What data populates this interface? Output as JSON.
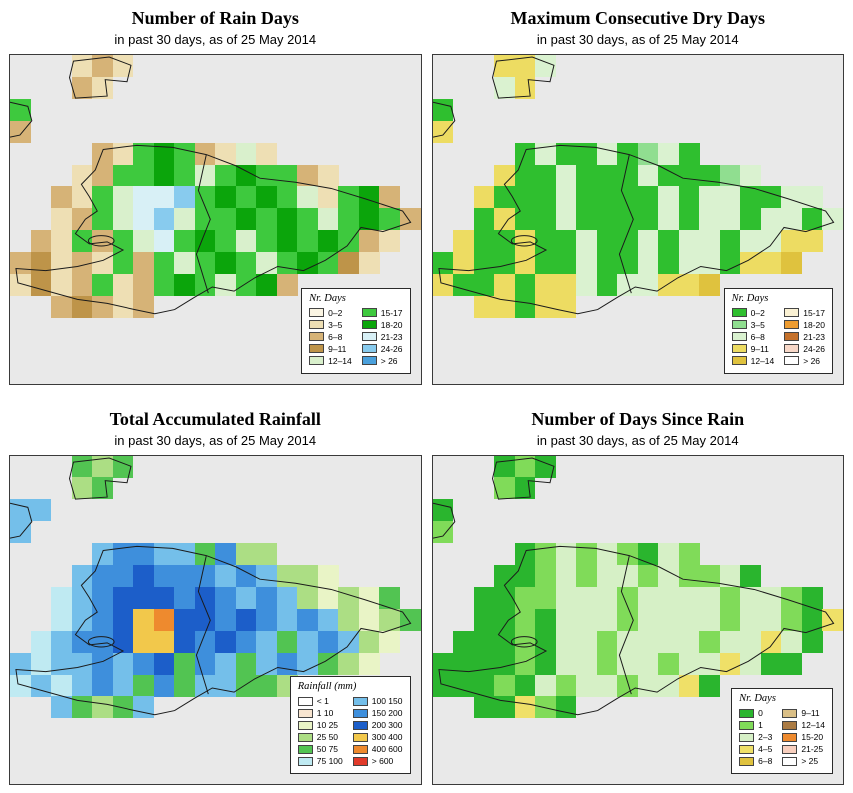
{
  "panels": [
    {
      "id": "rain-days",
      "title": "Number of Rain Days",
      "subtitle": "in past 30 days, as of  25 May 2014",
      "legend": {
        "title": "Nr. Days",
        "columns": [
          [
            {
              "label": "0–2",
              "color": "#FBF5E3"
            },
            {
              "label": "3–5",
              "color": "#EEDFB4"
            },
            {
              "label": "6–8",
              "color": "#D6B377"
            },
            {
              "label": "9–11",
              "color": "#BE9449"
            },
            {
              "label": "12–14",
              "color": "#D9F0CC"
            }
          ],
          [
            {
              "label": "15-17",
              "color": "#3EC93E"
            },
            {
              "label": "18-20",
              "color": "#0BA50B"
            },
            {
              "label": "21-23",
              "color": "#D8F0F6"
            },
            {
              "label": "24-26",
              "color": "#88CBEE"
            },
            {
              "label": "> 26",
              "color": "#4AA0DC"
            }
          ]
        ]
      },
      "map": {
        "background": "#e9e9e9",
        "palette": {
          "b": "#EEDFB4",
          "c": "#D6B377",
          "d": "#BE9449",
          "e": "#D9F0CC",
          "f": "#3EC93E",
          "g": "#0BA50B",
          "h": "#D8F0F6",
          "i": "#88CBEE"
        },
        "grid": [
          "...bcb..............",
          "...cb...............",
          "f...................",
          "c...................",
          "....cbfgfcbeb.......",
          "...bcffgfefgffcb....",
          "..cbfehhifgfgfebfgc.",
          "..bcfehieffgfgfefgfc",
          ".cbfcfehfgfefgfgfcb.",
          "cdbcbfcfefgfefgfdb..",
          "bdbcfbcfgfefgc......",
          "..cdcbc.............",
          "....................",
          "....................",
          "...................."
        ]
      }
    },
    {
      "id": "dry-days",
      "title": "Maximum Consecutive Dry Days",
      "subtitle": "in past 30 days, as of  25 May 2014",
      "legend": {
        "title": "Nr. Days",
        "columns": [
          [
            {
              "label": "0–2",
              "color": "#2FBF2F"
            },
            {
              "label": "3–5",
              "color": "#90DE90"
            },
            {
              "label": "6–8",
              "color": "#DAF2D0"
            },
            {
              "label": "9–11",
              "color": "#EDDC62"
            },
            {
              "label": "12–14",
              "color": "#DFC23E"
            }
          ],
          [
            {
              "label": "15-17",
              "color": "#FBF2D4"
            },
            {
              "label": "18-20",
              "color": "#EE9C30"
            },
            {
              "label": "21-23",
              "color": "#C5712B"
            },
            {
              "label": "24-26",
              "color": "#F8D8C8"
            },
            {
              "label": "> 26",
              "color": "#FFFFFF"
            }
          ]
        ]
      },
      "map": {
        "background": "#e9e9e9",
        "palette": {
          "a": "#2FBF2F",
          "b": "#90DE90",
          "c": "#DAF2D0",
          "d": "#EDDC62",
          "e": "#DFC23E"
        },
        "grid": [
          "...ddc..............",
          "...cd...............",
          "a...................",
          "d...................",
          "....acaacabca.......",
          "...daacaaacaaabc....",
          "..daaacaaaacaccaacc.",
          "..adaacaaaacaccaccac",
          ".daadaacaacaccaccdd.",
          "adaadaacaacaccadde..",
          "daadaddcaccdde......",
          "..ddadd.............",
          "....................",
          "....................",
          "...................."
        ]
      }
    },
    {
      "id": "accumulated-rainfall",
      "title": "Total Accumulated Rainfall",
      "subtitle": "in past 30 days, as of  25 May 2014",
      "legend": {
        "title": "Rainfall (mm)",
        "columns": [
          [
            {
              "label": "< 1",
              "color": "#FFFFFF"
            },
            {
              "label": "1 10",
              "color": "#F8E5D0"
            },
            {
              "label": "10 25",
              "color": "#E9F4C6"
            },
            {
              "label": "25 50",
              "color": "#ACDE84"
            },
            {
              "label": "50 75",
              "color": "#52C452"
            },
            {
              "label": "75 100",
              "color": "#BFEAF2"
            }
          ],
          [
            {
              "label": "100 150",
              "color": "#74BFEA"
            },
            {
              "label": "150 200",
              "color": "#3E8FDC"
            },
            {
              "label": "200 300",
              "color": "#1C5EC9"
            },
            {
              "label": "300 400",
              "color": "#F2C84B"
            },
            {
              "label": "400 600",
              "color": "#EE8A2E"
            },
            {
              "label": "> 600",
              "color": "#E13A2A"
            }
          ]
        ]
      },
      "map": {
        "background": "#e9e9e9",
        "palette": {
          "c": "#E9F4C6",
          "d": "#ACDE84",
          "e": "#52C452",
          "f": "#BFEAF2",
          "g": "#74BFEA",
          "h": "#3E8FDC",
          "i": "#1C5EC9",
          "j": "#F2C84B",
          "k": "#EE8A2E"
        },
        "grid": [
          "...ede..............",
          "...de...............",
          "gg..................",
          "g...................",
          "....ghhggehdd.......",
          "...ghhihhhghgddc....",
          "..fghiiihihghgdcdce.",
          "..fghijkiihihghgdcde",
          ".fghhijjihihgeghgdc.",
          "gfgghghiehgeghgedc..",
          "fgfghgeheggeed......",
          "..gedeg.............",
          "....................",
          "....................",
          "...................."
        ]
      }
    },
    {
      "id": "days-since-rain",
      "title": "Number of Days Since Rain",
      "subtitle": "in past 30 days, as of  25 May 2014",
      "legend": {
        "title": "Nr. Days",
        "columns": [
          [
            {
              "label": "0",
              "color": "#2AB52E"
            },
            {
              "label": "1",
              "color": "#80DB59"
            },
            {
              "label": "2–3",
              "color": "#D6F0C6"
            },
            {
              "label": "4–5",
              "color": "#EFE068"
            },
            {
              "label": "6–8",
              "color": "#DFC23E"
            }
          ],
          [
            {
              "label": "9–11",
              "color": "#DABF86"
            },
            {
              "label": "12–14",
              "color": "#AB7B43"
            },
            {
              "label": "15-20",
              "color": "#EE8A2E"
            },
            {
              "label": "21-25",
              "color": "#F8CFBE"
            },
            {
              "label": "> 25",
              "color": "#FFFFFF"
            }
          ]
        ]
      },
      "map": {
        "background": "#e9e9e9",
        "palette": {
          "a": "#2AB52E",
          "b": "#80DB59",
          "c": "#D6F0C6",
          "d": "#EFE068"
        },
        "grid": [
          "...aba..............",
          "...ba...............",
          "a...................",
          "b...................",
          "....abcbcbacb.......",
          "...aabcbccbcbbca....",
          "..aabbcccbccccbccba.",
          "..aabacccbccccbccbad",
          ".aaabaccbccccbccdca.",
          "aaaabaccbccbccdcaa..",
          "aaabacbccbccda......",
          "..aadba.............",
          "....................",
          "....................",
          "...................."
        ]
      }
    }
  ]
}
